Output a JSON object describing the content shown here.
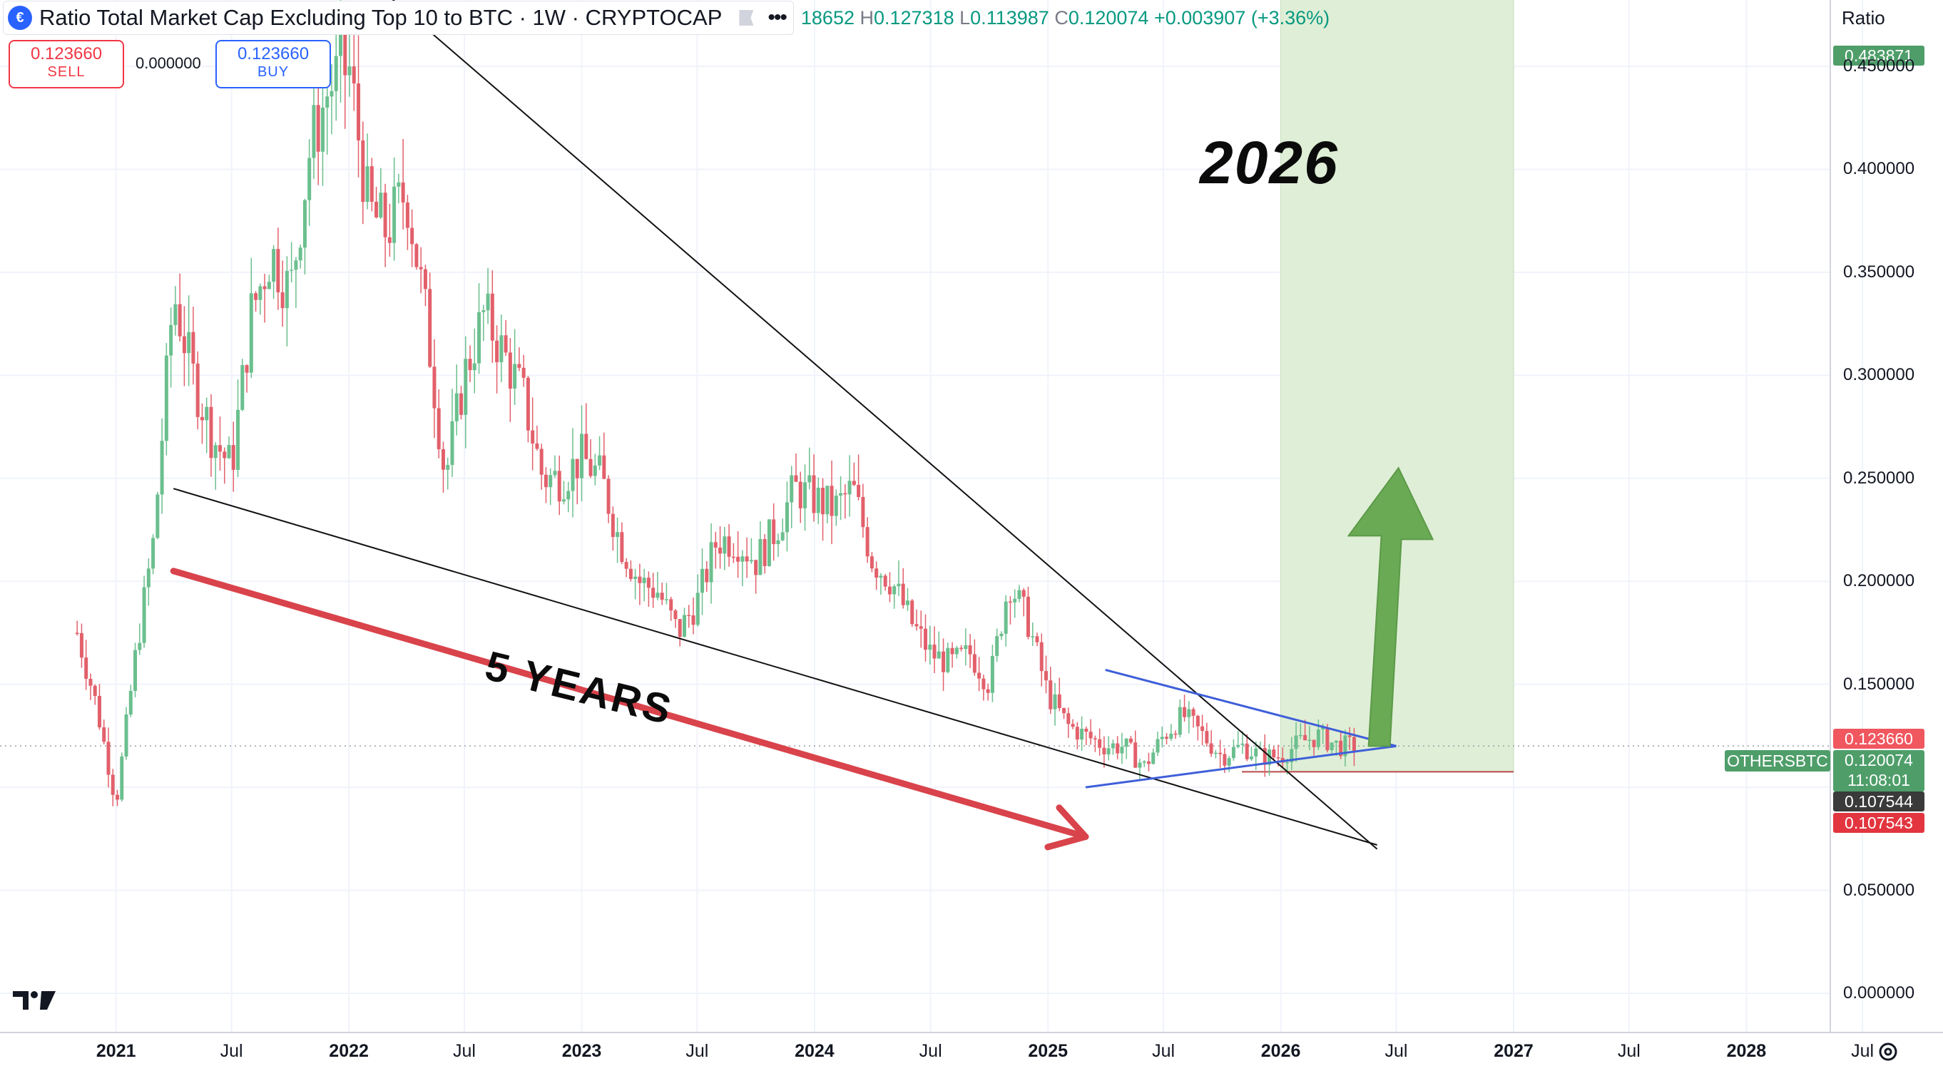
{
  "header": {
    "symbol_icon": "cryptocap-logo-icon",
    "title": "Ratio Total Market Cap Excluding Top 10 to BTC · 1W · CRYPTOCAP",
    "flag_icon": "flag-icon",
    "more_icon": "more-icon",
    "ohlc_fragment": "18652",
    "high_key": "H",
    "high": "0.127318",
    "low_key": "L",
    "low": "0.113987",
    "close_key": "C",
    "close": "0.120074",
    "change": "+0.003907 (+3.36%)"
  },
  "trade": {
    "sell_price": "0.123660",
    "sell_label": "SELL",
    "spread": "0.000000",
    "buy_price": "0.123660",
    "buy_label": "BUY"
  },
  "price_axis": {
    "title": "Ratio",
    "high_tag": "0.483871",
    "ticks": [
      "0.450000",
      "0.400000",
      "0.350000",
      "0.300000",
      "0.250000",
      "0.200000",
      "0.150000",
      "0.050000",
      "0.000000"
    ],
    "tag_ask": "0.123660",
    "symbol_tag": "OTHERSBTC",
    "last_price": "0.120074",
    "countdown": "11:08:01",
    "tag_low_dark": "0.107544",
    "tag_low_red": "0.107543"
  },
  "time_axis": {
    "ticks": [
      "2021",
      "Jul",
      "2022",
      "Jul",
      "2023",
      "Jul",
      "2024",
      "Jul",
      "2025",
      "Jul",
      "2026",
      "Jul",
      "2027",
      "Jul",
      "2028",
      "Jul"
    ]
  },
  "annotations": {
    "year_label": "2026",
    "duration_label": "5 YEARS"
  },
  "colors": {
    "up": "#089981",
    "candle_up": "#6bbf8e",
    "candle_down": "#e2606b",
    "target_zone": "#dfeed6",
    "arrow_red": "#d9434b",
    "arrow_green": "#6aaa55",
    "triangle_line": "#3e5fd9"
  },
  "chart_data": {
    "type": "candlestick",
    "interval": "1W",
    "y_axis_title": "Ratio",
    "ylim": [
      0.0,
      0.5
    ],
    "x_range": [
      "2020-10",
      "2028-09"
    ],
    "grid": true,
    "close_series": [
      {
        "date": "2020-11-01",
        "value": 0.175
      },
      {
        "date": "2020-12-01",
        "value": 0.14
      },
      {
        "date": "2021-01-01",
        "value": 0.092
      },
      {
        "date": "2021-02-01",
        "value": 0.165
      },
      {
        "date": "2021-03-01",
        "value": 0.22
      },
      {
        "date": "2021-04-01",
        "value": 0.34
      },
      {
        "date": "2021-05-01",
        "value": 0.3
      },
      {
        "date": "2021-06-01",
        "value": 0.27
      },
      {
        "date": "2021-07-01",
        "value": 0.255
      },
      {
        "date": "2021-08-01",
        "value": 0.33
      },
      {
        "date": "2021-09-01",
        "value": 0.36
      },
      {
        "date": "2021-10-01",
        "value": 0.34
      },
      {
        "date": "2021-11-01",
        "value": 0.41
      },
      {
        "date": "2021-12-01",
        "value": 0.44
      },
      {
        "date": "2022-01-01",
        "value": 0.45
      },
      {
        "date": "2022-02-01",
        "value": 0.38
      },
      {
        "date": "2022-03-01",
        "value": 0.37
      },
      {
        "date": "2022-04-01",
        "value": 0.39
      },
      {
        "date": "2022-05-01",
        "value": 0.33
      },
      {
        "date": "2022-06-01",
        "value": 0.25
      },
      {
        "date": "2022-07-01",
        "value": 0.3
      },
      {
        "date": "2022-08-01",
        "value": 0.33
      },
      {
        "date": "2022-09-01",
        "value": 0.31
      },
      {
        "date": "2022-10-01",
        "value": 0.29
      },
      {
        "date": "2022-11-01",
        "value": 0.25
      },
      {
        "date": "2022-12-01",
        "value": 0.25
      },
      {
        "date": "2023-01-01",
        "value": 0.26
      },
      {
        "date": "2023-02-01",
        "value": 0.25
      },
      {
        "date": "2023-03-01",
        "value": 0.22
      },
      {
        "date": "2023-04-01",
        "value": 0.2
      },
      {
        "date": "2023-05-01",
        "value": 0.195
      },
      {
        "date": "2023-06-01",
        "value": 0.175
      },
      {
        "date": "2023-07-01",
        "value": 0.19
      },
      {
        "date": "2023-08-01",
        "value": 0.22
      },
      {
        "date": "2023-09-01",
        "value": 0.22
      },
      {
        "date": "2023-10-01",
        "value": 0.21
      },
      {
        "date": "2023-11-01",
        "value": 0.225
      },
      {
        "date": "2023-12-01",
        "value": 0.245
      },
      {
        "date": "2024-01-01",
        "value": 0.24
      },
      {
        "date": "2024-02-01",
        "value": 0.235
      },
      {
        "date": "2024-03-01",
        "value": 0.245
      },
      {
        "date": "2024-04-01",
        "value": 0.21
      },
      {
        "date": "2024-05-01",
        "value": 0.2
      },
      {
        "date": "2024-06-01",
        "value": 0.18
      },
      {
        "date": "2024-07-01",
        "value": 0.165
      },
      {
        "date": "2024-08-01",
        "value": 0.16
      },
      {
        "date": "2024-09-01",
        "value": 0.165
      },
      {
        "date": "2024-10-01",
        "value": 0.15
      },
      {
        "date": "2024-11-01",
        "value": 0.2
      },
      {
        "date": "2024-12-01",
        "value": 0.18
      },
      {
        "date": "2025-01-01",
        "value": 0.145
      },
      {
        "date": "2025-02-01",
        "value": 0.13
      },
      {
        "date": "2025-03-01",
        "value": 0.125
      },
      {
        "date": "2025-04-01",
        "value": 0.12
      },
      {
        "date": "2025-05-01",
        "value": 0.12
      },
      {
        "date": "2025-06-01",
        "value": 0.11
      },
      {
        "date": "2025-07-01",
        "value": 0.125
      },
      {
        "date": "2025-08-01",
        "value": 0.135
      },
      {
        "date": "2025-09-01",
        "value": 0.125
      },
      {
        "date": "2025-10-01",
        "value": 0.115
      },
      {
        "date": "2025-11-01",
        "value": 0.12
      },
      {
        "date": "2025-12-01",
        "value": 0.115
      },
      {
        "date": "2026-01-01",
        "value": 0.115
      },
      {
        "date": "2026-02-01",
        "value": 0.122
      },
      {
        "date": "2026-03-01",
        "value": 0.125
      },
      {
        "date": "2026-04-01",
        "value": 0.12
      },
      {
        "date": "2026-05-01",
        "value": 0.12
      }
    ],
    "drawings": {
      "descending_trendline": [
        {
          "date": "2022-03-01",
          "value": 0.485
        },
        {
          "date": "2026-06-01",
          "value": 0.07
        }
      ],
      "lower_trendline": [
        {
          "date": "2021-04-01",
          "value": 0.245
        },
        {
          "date": "2026-06-01",
          "value": 0.072
        }
      ],
      "triangle_upper": [
        {
          "date": "2025-04-01",
          "value": 0.157
        },
        {
          "date": "2026-07-01",
          "value": 0.12
        }
      ],
      "triangle_lower": [
        {
          "date": "2025-03-01",
          "value": 0.1
        },
        {
          "date": "2026-07-01",
          "value": 0.12
        }
      ],
      "target_zone": {
        "from": "2026-01-01",
        "to": "2027-01-01",
        "low": 0.107543,
        "high": 0.483871
      },
      "red_arrow": [
        {
          "date": "2021-04-01",
          "value": 0.205
        },
        {
          "date": "2025-03-01",
          "value": 0.076
        }
      ],
      "green_arrow": [
        {
          "date": "2026-06-01",
          "value": 0.12
        },
        {
          "date": "2026-06-01",
          "value": 0.255
        }
      ]
    }
  }
}
